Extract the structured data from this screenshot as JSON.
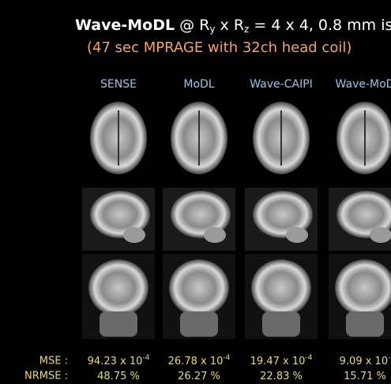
{
  "title": {
    "parts": [
      "Wave-MoDL",
      " @ R",
      "y",
      " x R",
      "z",
      " = 4 x 4, 0.8 mm is"
    ]
  },
  "subtitle": "(47 sec MPRAGE with 32ch head coil)",
  "columns": [
    "SENSE",
    "MoDL",
    "Wave-CAIPI",
    "Wave-MoD"
  ],
  "metrics": [
    {
      "label": "MSE :",
      "values": [
        {
          "base": "94.23 x 10",
          "exp": "-4"
        },
        {
          "base": "26.78 x 10",
          "exp": "-4"
        },
        {
          "base": "19.47 x 10",
          "exp": "-4"
        },
        {
          "base": "9.09 x 10",
          "exp": "-"
        }
      ]
    },
    {
      "label": "NRMSE :",
      "values": [
        {
          "base": "48.75 %"
        },
        {
          "base": "26.27 %"
        },
        {
          "base": "22.83 %"
        },
        {
          "base": "15.71 %"
        }
      ]
    }
  ]
}
